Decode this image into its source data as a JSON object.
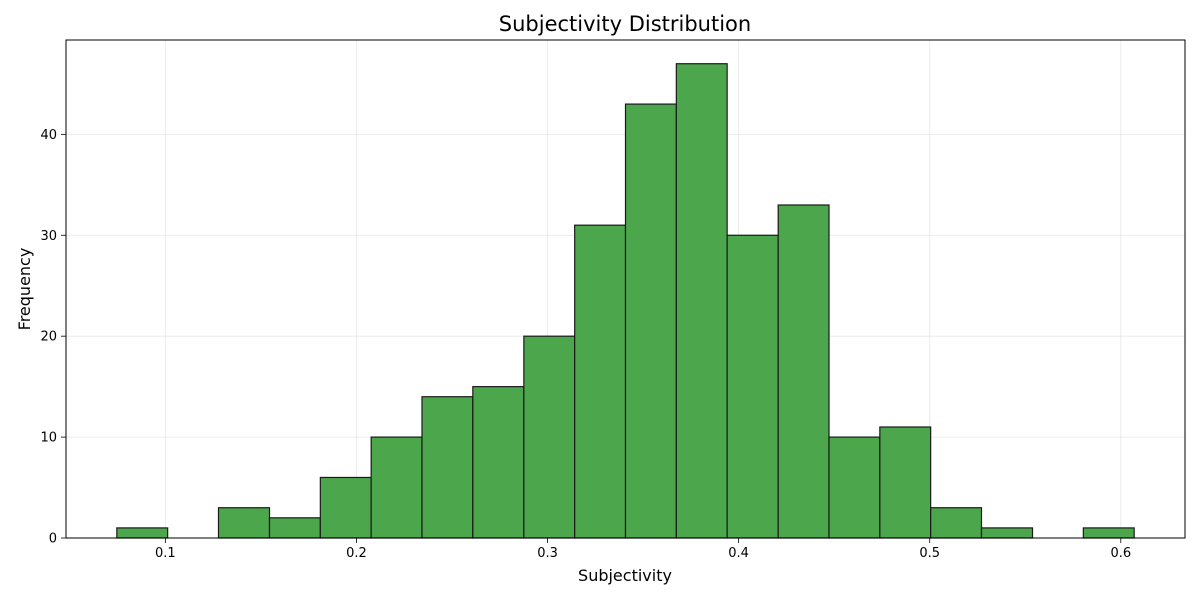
{
  "chart_data": {
    "type": "bar",
    "title": "Subjectivity Distribution",
    "xlabel": "Subjectivity",
    "ylabel": "Frequency",
    "bin_edges": [
      0.0746,
      0.1012,
      0.1278,
      0.1545,
      0.1811,
      0.2077,
      0.2343,
      0.2609,
      0.2876,
      0.3142,
      0.3408,
      0.3674,
      0.394,
      0.4207,
      0.4473,
      0.4739,
      0.5005,
      0.5271,
      0.5538,
      0.5804,
      0.607
    ],
    "values": [
      1,
      0,
      3,
      2,
      6,
      10,
      14,
      15,
      20,
      31,
      43,
      47,
      30,
      33,
      10,
      11,
      3,
      1,
      0,
      1
    ],
    "xlim": [
      0.048,
      0.6336
    ],
    "ylim": [
      0,
      49.35
    ],
    "xticks": [
      0.1,
      0.2,
      0.3,
      0.4,
      0.5,
      0.6
    ],
    "xtick_labels": [
      "0.1",
      "0.2",
      "0.3",
      "0.4",
      "0.5",
      "0.6"
    ],
    "yticks": [
      0,
      10,
      20,
      30,
      40
    ],
    "ytick_labels": [
      "0",
      "10",
      "20",
      "30",
      "40"
    ],
    "grid": true,
    "bar_color": "#4ca64c",
    "edge_color": "#1a1a1a"
  }
}
